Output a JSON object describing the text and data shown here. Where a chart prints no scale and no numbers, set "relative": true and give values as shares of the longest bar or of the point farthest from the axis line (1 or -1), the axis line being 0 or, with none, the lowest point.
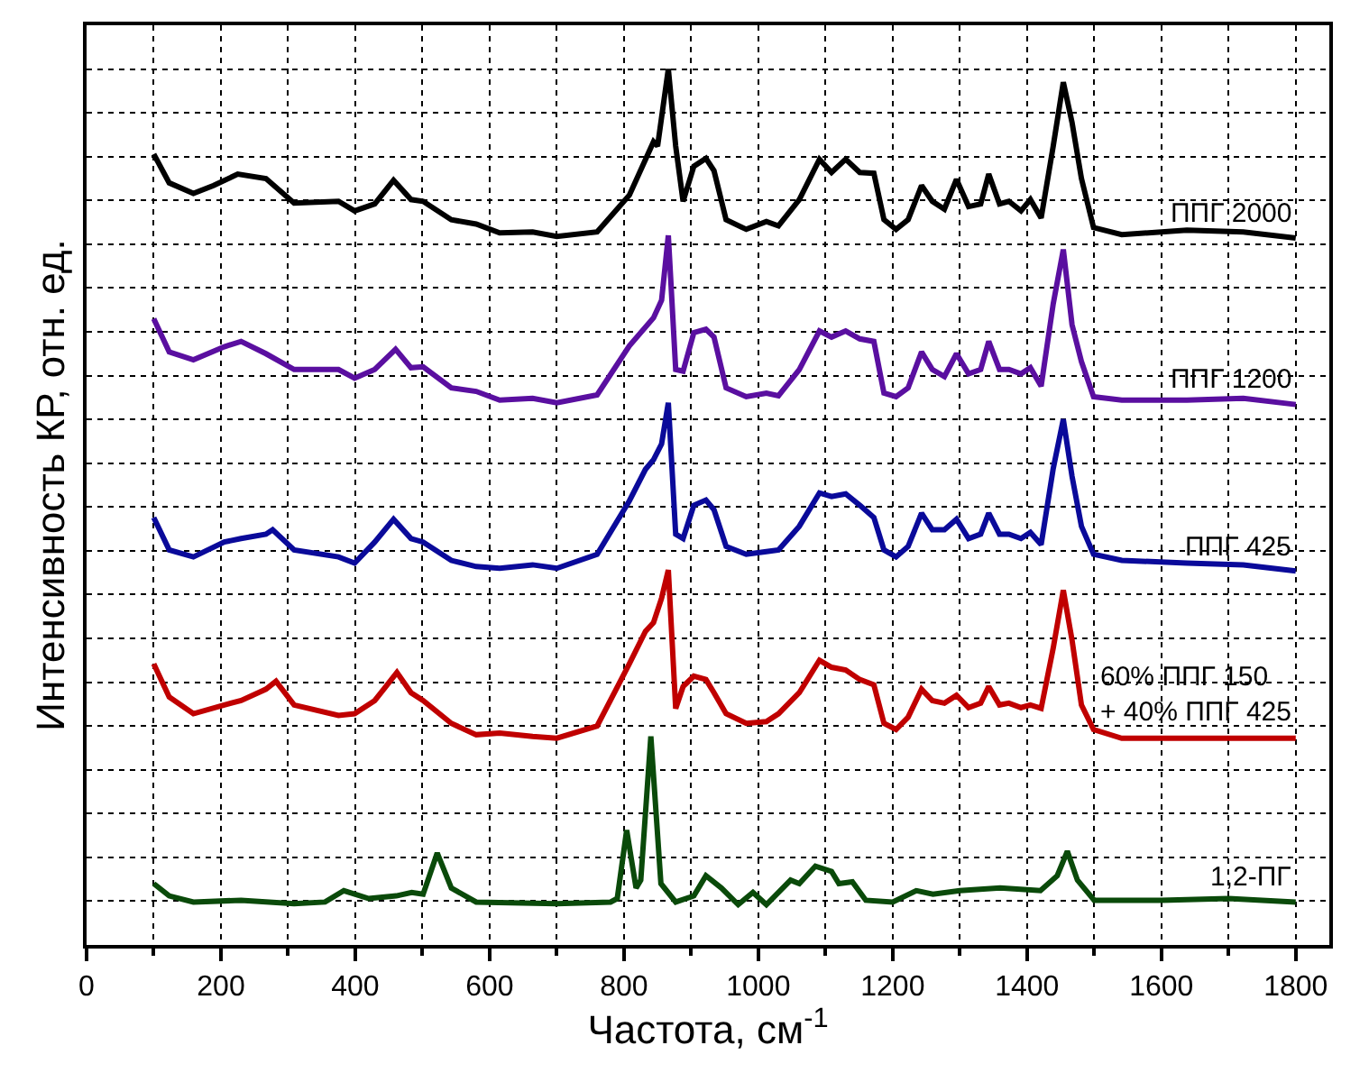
{
  "chart_data": {
    "type": "line",
    "relative": true,
    "xlabel": "Частота, см$^{-1}$",
    "ylabel": "Интенсивность КР, отн. ед.",
    "xlim": [
      0,
      1850
    ],
    "xticks": [
      0,
      200,
      400,
      600,
      800,
      1000,
      1200,
      1400,
      1600,
      1800
    ],
    "grid": true,
    "legend": false,
    "marker": "none",
    "line_style": "solid",
    "series": [
      {
        "name": "ППГ 2000",
        "color": "#000000",
        "x": [
          100,
          123,
          159,
          189,
          225,
          267,
          309,
          375,
          399,
          429,
          457,
          483,
          501,
          543,
          580,
          615,
          664,
          700,
          760,
          808,
          844,
          850,
          866,
          877,
          888,
          904,
          922,
          934,
          952,
          982,
          1012,
          1030,
          1061,
          1091,
          1109,
          1130,
          1151,
          1172,
          1187,
          1205,
          1223,
          1243,
          1259,
          1277,
          1295,
          1313,
          1331,
          1343,
          1359,
          1373,
          1391,
          1405,
          1421,
          1439,
          1454,
          1467,
          1481,
          1499,
          1541,
          1638,
          1722,
          1800
        ],
        "values": [
          0.903,
          0.87,
          0.858,
          0.867,
          0.88,
          0.875,
          0.847,
          0.849,
          0.838,
          0.846,
          0.873,
          0.851,
          0.849,
          0.828,
          0.823,
          0.813,
          0.814,
          0.809,
          0.814,
          0.856,
          0.917,
          0.912,
          1.0,
          0.912,
          0.849,
          0.889,
          0.898,
          0.884,
          0.828,
          0.817,
          0.826,
          0.821,
          0.851,
          0.897,
          0.882,
          0.897,
          0.882,
          0.881,
          0.828,
          0.817,
          0.828,
          0.867,
          0.849,
          0.84,
          0.874,
          0.843,
          0.846,
          0.88,
          0.846,
          0.849,
          0.838,
          0.851,
          0.83,
          0.912,
          0.985,
          0.939,
          0.875,
          0.819,
          0.811,
          0.816,
          0.814,
          0.807
        ]
      },
      {
        "name": "ППГ 1200",
        "color": "#5a0fa0",
        "x": [
          100,
          123,
          159,
          205,
          230,
          267,
          309,
          375,
          399,
          429,
          460,
          483,
          501,
          543,
          580,
          615,
          664,
          700,
          760,
          808,
          844,
          856,
          866,
          877,
          888,
          904,
          922,
          934,
          952,
          982,
          1012,
          1030,
          1061,
          1091,
          1109,
          1130,
          1151,
          1172,
          1187,
          1205,
          1223,
          1243,
          1259,
          1277,
          1295,
          1313,
          1331,
          1343,
          1359,
          1373,
          1391,
          1405,
          1421,
          1439,
          1454,
          1467,
          1481,
          1499,
          1541,
          1638,
          1722,
          1800
        ],
        "values": [
          0.715,
          0.677,
          0.668,
          0.683,
          0.689,
          0.675,
          0.657,
          0.657,
          0.647,
          0.657,
          0.68,
          0.659,
          0.66,
          0.636,
          0.632,
          0.622,
          0.624,
          0.619,
          0.628,
          0.684,
          0.716,
          0.736,
          0.81,
          0.657,
          0.655,
          0.699,
          0.703,
          0.694,
          0.636,
          0.626,
          0.63,
          0.627,
          0.657,
          0.701,
          0.694,
          0.701,
          0.692,
          0.689,
          0.63,
          0.626,
          0.636,
          0.677,
          0.657,
          0.649,
          0.675,
          0.652,
          0.657,
          0.689,
          0.657,
          0.657,
          0.652,
          0.659,
          0.638,
          0.732,
          0.794,
          0.708,
          0.666,
          0.626,
          0.622,
          0.622,
          0.624,
          0.617
        ]
      },
      {
        "name": "ППГ 425",
        "color": "#0a0a9a",
        "x": [
          100,
          123,
          159,
          205,
          230,
          267,
          277,
          309,
          375,
          399,
          429,
          457,
          483,
          501,
          543,
          580,
          615,
          664,
          700,
          760,
          808,
          832,
          844,
          856,
          866,
          877,
          888,
          904,
          922,
          934,
          952,
          982,
          1012,
          1030,
          1061,
          1091,
          1109,
          1130,
          1151,
          1172,
          1187,
          1205,
          1223,
          1243,
          1259,
          1277,
          1295,
          1313,
          1331,
          1343,
          1359,
          1373,
          1391,
          1405,
          1421,
          1439,
          1454,
          1467,
          1481,
          1499,
          1541,
          1638,
          1722,
          1800
        ],
        "values": [
          0.488,
          0.451,
          0.443,
          0.46,
          0.464,
          0.469,
          0.474,
          0.451,
          0.443,
          0.436,
          0.46,
          0.486,
          0.464,
          0.46,
          0.439,
          0.432,
          0.43,
          0.434,
          0.43,
          0.446,
          0.507,
          0.543,
          0.554,
          0.572,
          0.619,
          0.469,
          0.464,
          0.502,
          0.508,
          0.497,
          0.455,
          0.446,
          0.449,
          0.451,
          0.478,
          0.516,
          0.512,
          0.515,
          0.502,
          0.488,
          0.451,
          0.443,
          0.455,
          0.493,
          0.474,
          0.474,
          0.486,
          0.464,
          0.469,
          0.493,
          0.469,
          0.469,
          0.464,
          0.471,
          0.457,
          0.544,
          0.6,
          0.535,
          0.478,
          0.446,
          0.439,
          0.436,
          0.434,
          0.427
        ]
      },
      {
        "name": "60% ППГ 150\n+ 40% ППГ 425",
        "color": "#c00000",
        "x": [
          100,
          123,
          159,
          205,
          230,
          267,
          282,
          309,
          375,
          399,
          429,
          462,
          483,
          501,
          543,
          580,
          615,
          664,
          700,
          760,
          808,
          832,
          844,
          856,
          866,
          877,
          888,
          904,
          922,
          934,
          952,
          982,
          1012,
          1030,
          1061,
          1091,
          1109,
          1130,
          1151,
          1172,
          1187,
          1205,
          1223,
          1243,
          1259,
          1277,
          1295,
          1313,
          1331,
          1343,
          1359,
          1373,
          1391,
          1405,
          1421,
          1439,
          1454,
          1467,
          1481,
          1499,
          1541,
          1638,
          1722,
          1800
        ],
        "values": [
          0.321,
          0.283,
          0.264,
          0.274,
          0.279,
          0.292,
          0.301,
          0.274,
          0.262,
          0.264,
          0.279,
          0.311,
          0.288,
          0.279,
          0.253,
          0.24,
          0.242,
          0.238,
          0.236,
          0.25,
          0.321,
          0.358,
          0.368,
          0.396,
          0.428,
          0.27,
          0.295,
          0.307,
          0.303,
          0.288,
          0.264,
          0.253,
          0.255,
          0.264,
          0.288,
          0.325,
          0.317,
          0.314,
          0.303,
          0.297,
          0.253,
          0.246,
          0.26,
          0.292,
          0.279,
          0.276,
          0.285,
          0.271,
          0.276,
          0.295,
          0.274,
          0.276,
          0.271,
          0.274,
          0.27,
          0.339,
          0.405,
          0.348,
          0.274,
          0.246,
          0.236,
          0.236,
          0.236,
          0.236
        ]
      },
      {
        "name": "1,2-ПГ",
        "color": "#0a4a0a",
        "x": [
          100,
          123,
          159,
          230,
          309,
          355,
          383,
          420,
          461,
          484,
          501,
          522,
          543,
          580,
          700,
          780,
          790,
          804,
          818,
          825,
          840,
          855,
          877,
          904,
          922,
          945,
          970,
          992,
          1012,
          1048,
          1061,
          1085,
          1109,
          1120,
          1140,
          1160,
          1200,
          1235,
          1260,
          1300,
          1360,
          1420,
          1445,
          1460,
          1475,
          1500,
          1600,
          1700,
          1800
        ],
        "values": [
          0.07,
          0.056,
          0.049,
          0.051,
          0.047,
          0.049,
          0.062,
          0.053,
          0.056,
          0.06,
          0.058,
          0.105,
          0.065,
          0.049,
          0.047,
          0.049,
          0.053,
          0.131,
          0.065,
          0.074,
          0.238,
          0.07,
          0.049,
          0.056,
          0.079,
          0.065,
          0.046,
          0.06,
          0.046,
          0.074,
          0.07,
          0.09,
          0.084,
          0.07,
          0.072,
          0.051,
          0.049,
          0.062,
          0.058,
          0.062,
          0.065,
          0.062,
          0.079,
          0.107,
          0.074,
          0.051,
          0.051,
          0.053,
          0.049
        ]
      }
    ]
  }
}
